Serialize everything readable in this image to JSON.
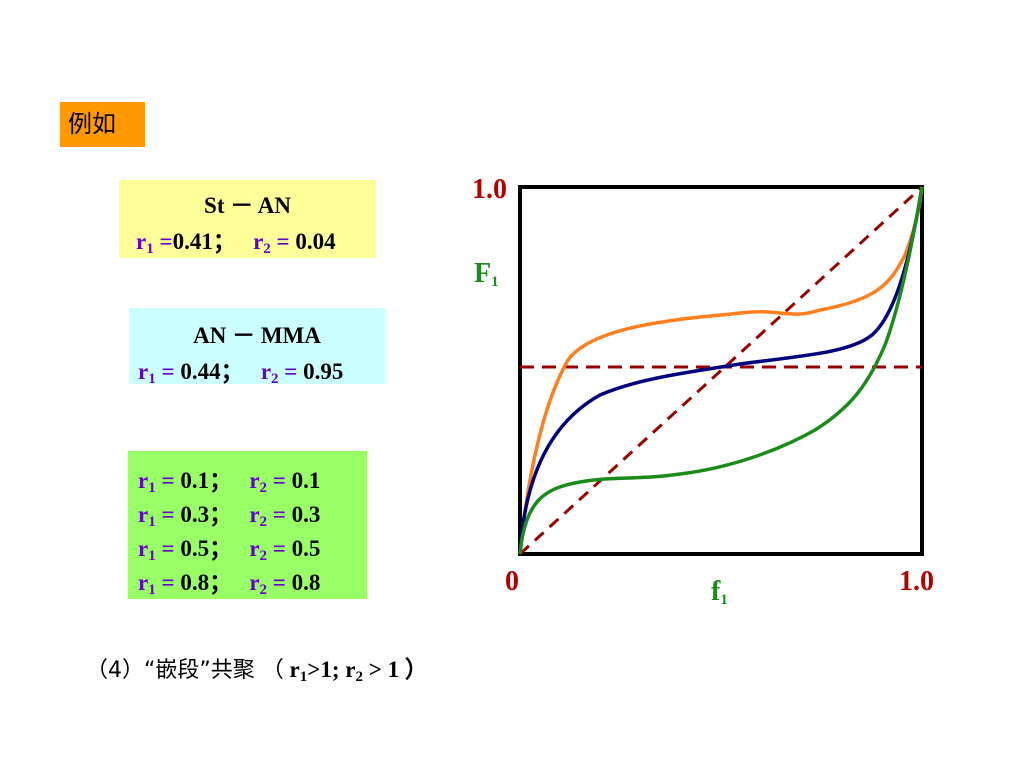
{
  "tag": "例如",
  "box1": {
    "title": "St － AN",
    "r1_label": "r",
    "r1_sub": "1",
    "r1_eq": " =",
    "r1_val": "0.41",
    "sep": "；",
    "r2_label": "r",
    "r2_sub": "2",
    "r2_eq": " =",
    "r2_val": " 0.04"
  },
  "box2": {
    "title": "AN － MMA",
    "r1_label": "r",
    "r1_sub": "1",
    "r1_eq": " =",
    "r1_val": " 0.44",
    "sep": "；",
    "r2_label": "r",
    "r2_sub": "2",
    "r2_eq": " =",
    "r2_val": " 0.95"
  },
  "box3": {
    "rows": [
      {
        "r1_label": "r",
        "r1_sub": "1",
        "r1_eq": " =",
        "r1_val": " 0.1",
        "sep": "；",
        "r2_label": "r",
        "r2_sub": "2",
        "r2_eq": " =",
        "r2_val": " 0.1"
      },
      {
        "r1_label": "r",
        "r1_sub": "1",
        "r1_eq": " =",
        "r1_val": " 0.3",
        "sep": "；",
        "r2_label": "r",
        "r2_sub": "2",
        "r2_eq": " =",
        "r2_val": " 0.3"
      },
      {
        "r1_label": "r",
        "r1_sub": "1",
        "r1_eq": " =",
        "r1_val": " 0.5",
        "sep": "；",
        "r2_label": "r",
        "r2_sub": "2",
        "r2_eq": " =",
        "r2_val": " 0.5"
      },
      {
        "r1_label": "r",
        "r1_sub": "1",
        "r1_eq": " =",
        "r1_val": " 0.8",
        "sep": "；",
        "r2_label": "r",
        "r2_sub": "2",
        "r2_eq": " =",
        "r2_val": " 0.8"
      }
    ]
  },
  "plot": {
    "y_top_label": "1.0",
    "y_axis_label": "F",
    "y_axis_sub": "1",
    "origin_label": "0",
    "x_right_label": "1.0",
    "x_axis_label": "f",
    "x_axis_sub": "1",
    "colors": {
      "orange": "#ff7f1e",
      "navy": "#000080",
      "green": "#1a8c1a",
      "dashed": "#990000",
      "frame": "#000000"
    }
  },
  "footer": {
    "num": "（4）",
    "quote": "“嵌段”共聚 （",
    "r1_label": " r",
    "r1_sub": "1",
    "r1_rest": ">1; ",
    "r2_label": "r",
    "r2_sub": "2",
    "r2_rest": " > 1 ）"
  }
}
